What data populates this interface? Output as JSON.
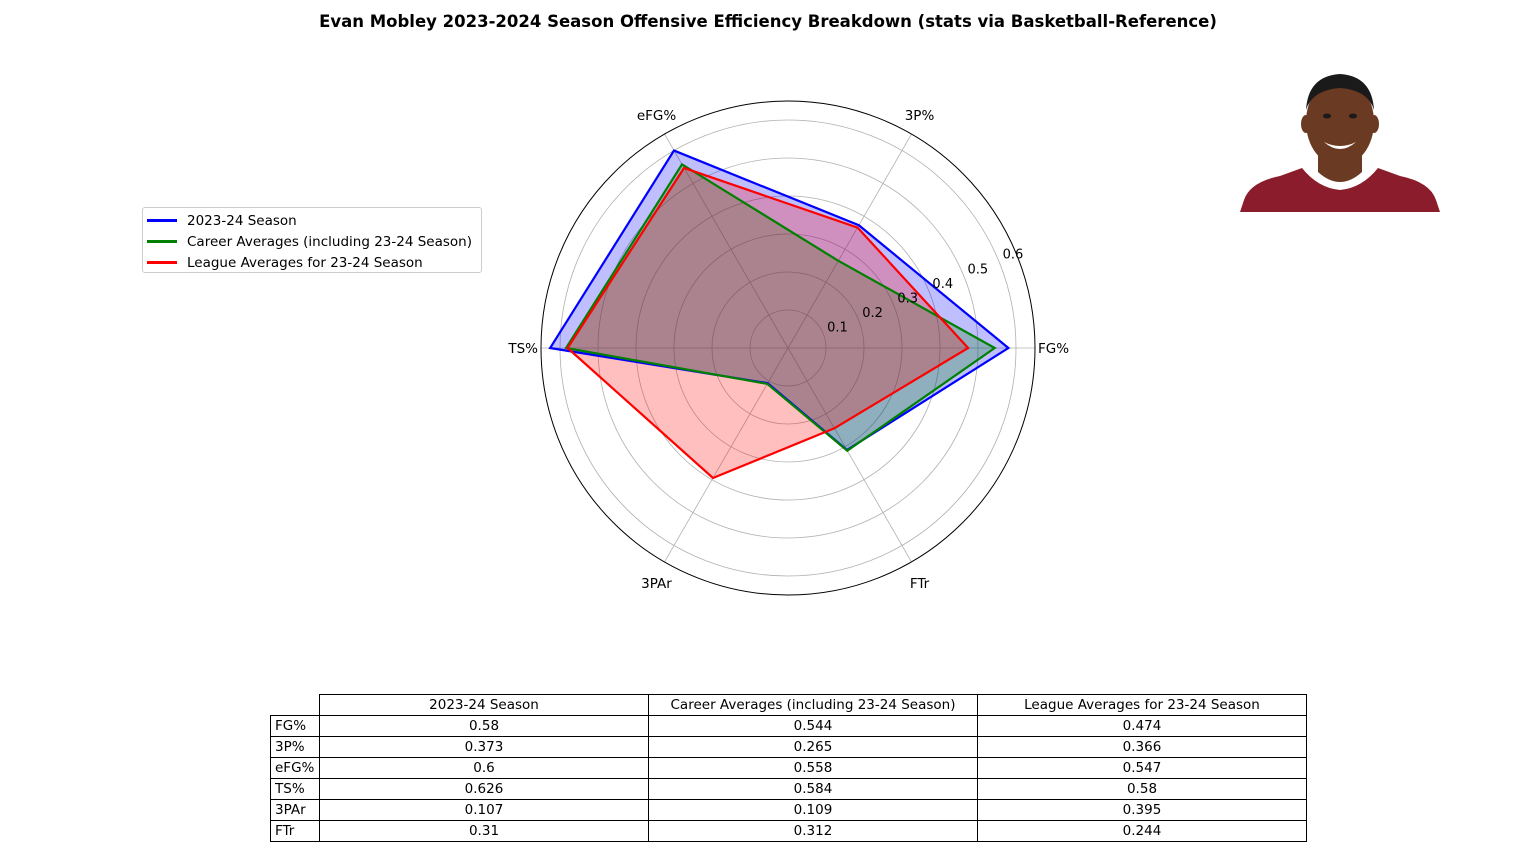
{
  "chart_data": {
    "type": "radar",
    "title": "Evan Mobley 2023-2024 Season Offensive Efficiency Breakdown (stats via Basketball-Reference)",
    "axes": [
      "FG%",
      "3P%",
      "eFG%",
      "TS%",
      "3PAr",
      "FTr"
    ],
    "radial_ticks": [
      "0.1",
      "0.2",
      "0.3",
      "0.4",
      "0.5",
      "0.6"
    ],
    "rlim": [
      0,
      0.65
    ],
    "grid": true,
    "legend_position": "left",
    "series": [
      {
        "name": "2023-24 Season",
        "values": [
          0.58,
          0.373,
          0.6,
          0.626,
          0.107,
          0.31
        ],
        "color": "#0000ff"
      },
      {
        "name": "Career Averages (including 23-24 Season)",
        "values": [
          0.544,
          0.265,
          0.558,
          0.584,
          0.109,
          0.312
        ],
        "color": "#008000"
      },
      {
        "name": "League Averages for 23-24 Season",
        "values": [
          0.474,
          0.366,
          0.547,
          0.58,
          0.395,
          0.244
        ],
        "color": "#ff0000"
      }
    ],
    "table": {
      "columns": [
        "2023-24 Season",
        "Career Averages (including 23-24 Season)",
        "League Averages for 23-24 Season"
      ],
      "rows": [
        {
          "label": "FG%",
          "cells": [
            "0.58",
            "0.544",
            "0.474"
          ]
        },
        {
          "label": "3P%",
          "cells": [
            "0.373",
            "0.265",
            "0.366"
          ]
        },
        {
          "label": "eFG%",
          "cells": [
            "0.6",
            "0.558",
            "0.547"
          ]
        },
        {
          "label": "TS%",
          "cells": [
            "0.626",
            "0.584",
            "0.58"
          ]
        },
        {
          "label": "3PAr",
          "cells": [
            "0.107",
            "0.109",
            "0.395"
          ]
        },
        {
          "label": "FTr",
          "cells": [
            "0.31",
            "0.312",
            "0.244"
          ]
        }
      ]
    }
  },
  "colors": {
    "jersey": "#8a1c2b",
    "skin": "#6b3a22",
    "hair": "#1a1a1a"
  },
  "photo_icon": "player-headshot"
}
